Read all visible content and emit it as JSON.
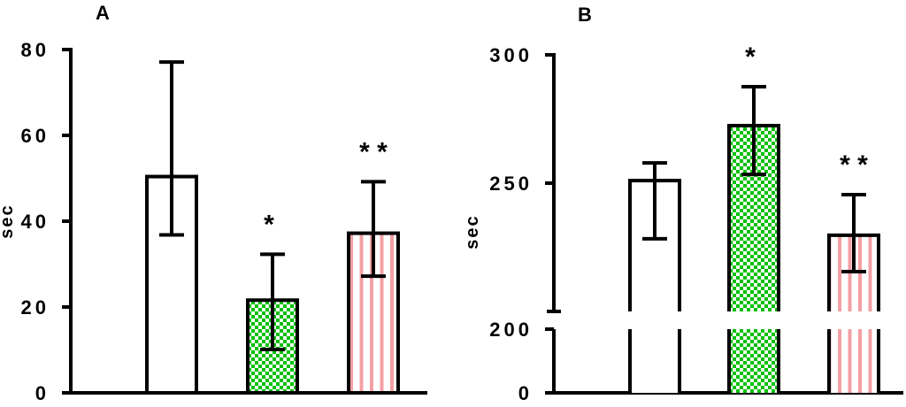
{
  "colors": {
    "green": "#00c000",
    "pink": "#f4a0a4",
    "outline": "#000000"
  },
  "chart_data": [
    {
      "type": "bar",
      "panel_label": "A",
      "ylabel": "sec",
      "ylim": [
        0,
        80
      ],
      "yticks": [
        0,
        20,
        40,
        60,
        80
      ],
      "categories": [
        "",
        "",
        ""
      ],
      "values": [
        50.4,
        21.6,
        37.2
      ],
      "error_upper": [
        77.1,
        32.3,
        49.2
      ],
      "error_lower": [
        36.8,
        10.1,
        27.2
      ],
      "fills": [
        "none",
        "green-checker",
        "pink-stripes"
      ],
      "annotations": [
        "",
        "*",
        "* *"
      ]
    },
    {
      "type": "bar",
      "panel_label": "B",
      "ylabel": "sec",
      "ylim": [
        0,
        300
      ],
      "axis_break": [
        0,
        200
      ],
      "yticks": [
        0,
        200,
        250,
        300
      ],
      "categories": [
        "",
        "",
        ""
      ],
      "values": [
        251,
        272.4,
        229.7
      ],
      "error_upper": [
        257.9,
        287.6,
        245.5
      ],
      "error_lower": [
        228.3,
        253.4,
        215.5
      ],
      "fills": [
        "none",
        "green-checker",
        "pink-stripes"
      ],
      "annotations": [
        "",
        "*",
        "* *"
      ]
    }
  ]
}
